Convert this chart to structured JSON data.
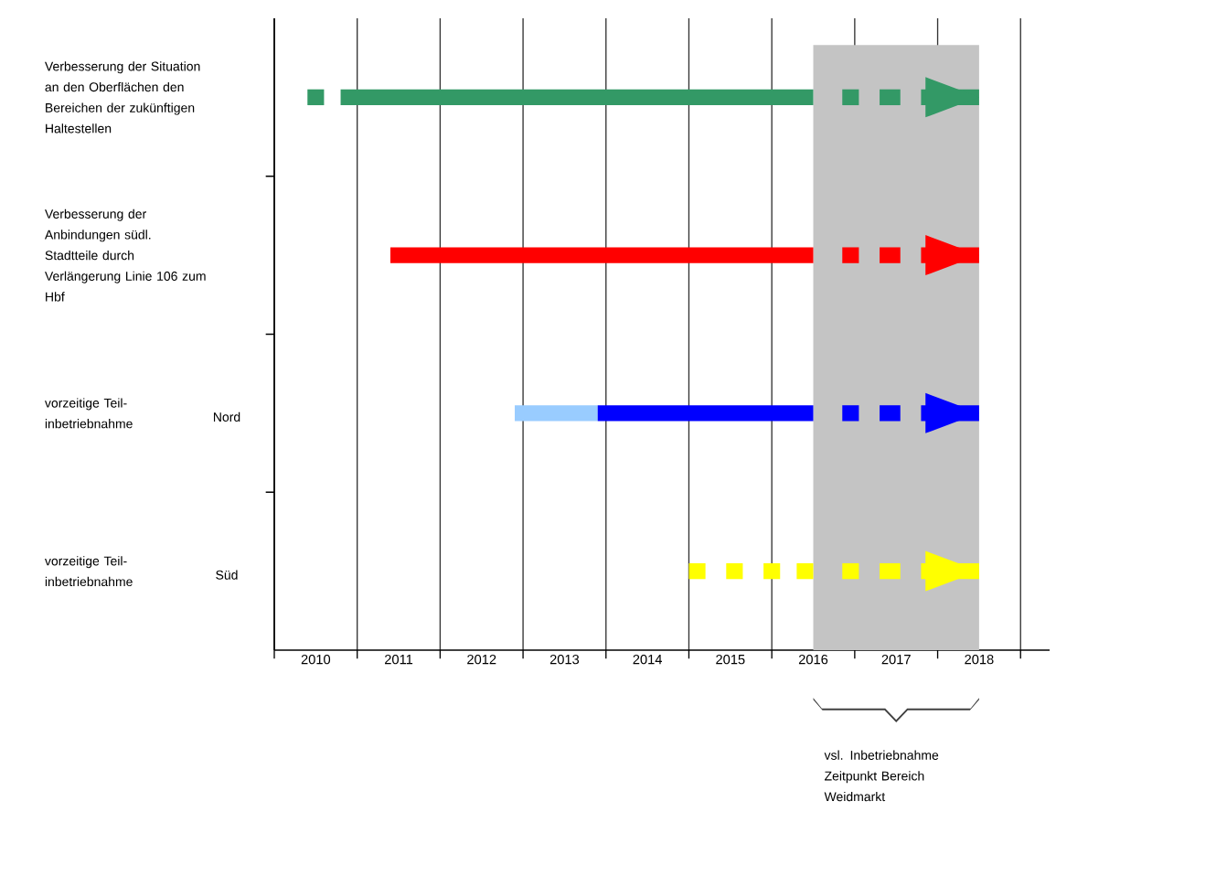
{
  "chart_data": {
    "type": "bar",
    "orientation": "horizontal",
    "grid": "x",
    "categories": [
      "Verbesserung der Situation an den Oberflächen den Bereichen der zukünftigen Haltestellen",
      "Verbesserung der Anbindungen südl. Stadtteile durch Verlängerung Linie 106 zum Hbf",
      "vorzeitige Teil-inbetriebnahme",
      "vorzeitige Teil-inbetriebnahme"
    ],
    "series": [
      {
        "base": [
          2010.4,
          null,
          2012.9,
          null
        ],
        "values": [
          0.2,
          null,
          1.0,
          null
        ],
        "colors": [
          "#339966",
          null,
          "#99ccff",
          null
        ]
      },
      {
        "base": [
          2010.8,
          2011.4,
          2013.9,
          null
        ],
        "values": [
          5.7,
          5.1,
          2.6,
          null
        ],
        "colors": [
          "#339966",
          "#ff0000",
          "#0000ff",
          null
        ]
      },
      {
        "base": [
          null,
          null,
          null,
          2015.0
        ],
        "values": [
          null,
          null,
          null,
          0.2
        ],
        "colors": [
          null,
          null,
          null,
          "#ffff00"
        ]
      },
      {
        "base": [
          null,
          null,
          null,
          2015.45
        ],
        "values": [
          null,
          null,
          null,
          0.2
        ],
        "colors": [
          null,
          null,
          null,
          "#ffff00"
        ]
      },
      {
        "base": [
          null,
          null,
          null,
          2015.9
        ],
        "values": [
          null,
          null,
          null,
          0.2
        ],
        "colors": [
          null,
          null,
          null,
          "#ffff00"
        ]
      },
      {
        "base": [
          null,
          null,
          null,
          2016.3
        ],
        "values": [
          null,
          null,
          null,
          0.2
        ],
        "colors": [
          null,
          null,
          null,
          "#ffff00"
        ]
      },
      {
        "base": [
          2016.85,
          2016.85,
          2016.85,
          2016.85
        ],
        "values": [
          0.2,
          0.2,
          0.2,
          0.2
        ],
        "colors": [
          "#339966",
          "#ff0000",
          "#0000ff",
          "#ffff00"
        ]
      },
      {
        "base": [
          2017.3,
          2017.3,
          2017.3,
          2017.3
        ],
        "values": [
          0.25,
          0.25,
          0.25,
          0.25
        ],
        "colors": [
          "#339966",
          "#ff0000",
          "#0000ff",
          "#ffff00"
        ]
      },
      {
        "base": [
          2017.8,
          2017.8,
          2017.8,
          2017.8
        ],
        "values": [
          0.7,
          0.7,
          0.7,
          0.7
        ],
        "colors": [
          "#339966",
          "#ff0000",
          "#0000ff",
          "#ffff00"
        ],
        "marker": "triangle"
      }
    ],
    "xlim": [
      2010,
      2019.35
    ],
    "xticks": [
      {
        "value": 2010,
        "label": null
      },
      {
        "value": 2011,
        "label": null
      },
      {
        "value": 2012,
        "label": null
      },
      {
        "value": 2013,
        "label": null
      },
      {
        "value": 2014,
        "label": null
      },
      {
        "value": 2015,
        "label": null
      },
      {
        "value": 2016,
        "label": null
      },
      {
        "value": 2017,
        "label": null
      },
      {
        "value": 2018,
        "label": null
      },
      {
        "value": 2019,
        "label": null
      },
      {
        "value": 2010.5,
        "label": "2010"
      },
      {
        "value": 2011.5,
        "label": "2011"
      },
      {
        "value": 2012.5,
        "label": "2012"
      },
      {
        "value": 2013.5,
        "label": "2013"
      },
      {
        "value": 2014.5,
        "label": "2014"
      },
      {
        "value": 2015.5,
        "label": "2015"
      },
      {
        "value": 2016.5,
        "label": "2016"
      },
      {
        "value": 2017.5,
        "label": "2017"
      },
      {
        "value": 2018.5,
        "label": "2018"
      }
    ],
    "bands": [
      {
        "axis": "x",
        "from": 2016.5,
        "to": 2018.5,
        "color": "#c4c4c4"
      }
    ],
    "annotations": [
      "Nord",
      "Süd",
      "vsl. Inbetriebnahme Zeitpunkt Bereich Weidmarkt"
    ]
  }
}
